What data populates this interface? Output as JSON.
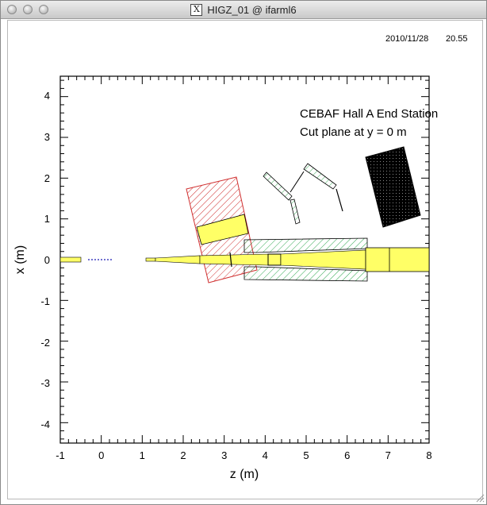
{
  "window": {
    "title": "HIGZ_01 @ ifarml6",
    "x_glyph": "X"
  },
  "plot": {
    "timestamp_date": "2010/11/28",
    "timestamp_time": "20.55",
    "annotation_line1": "CEBAF Hall A End Station",
    "annotation_line2": "Cut plane at y =  0 m",
    "xlabel": "z (m)",
    "ylabel": "x (m)",
    "x_ticks": [
      "-1",
      "0",
      "1",
      "2",
      "3",
      "4",
      "5",
      "6",
      "7",
      "8"
    ],
    "y_ticks": [
      "4",
      "3",
      "2",
      "1",
      "0",
      "-1",
      "-2",
      "-3",
      "-4"
    ],
    "xlim": [
      -1,
      8
    ],
    "ylim": [
      -4.5,
      4.5
    ]
  },
  "colors": {
    "yellow_fill": "#ffff66",
    "red_hatch": "#d03030",
    "green_hatch": "#2fa84f",
    "detector_black": "#000000"
  }
}
